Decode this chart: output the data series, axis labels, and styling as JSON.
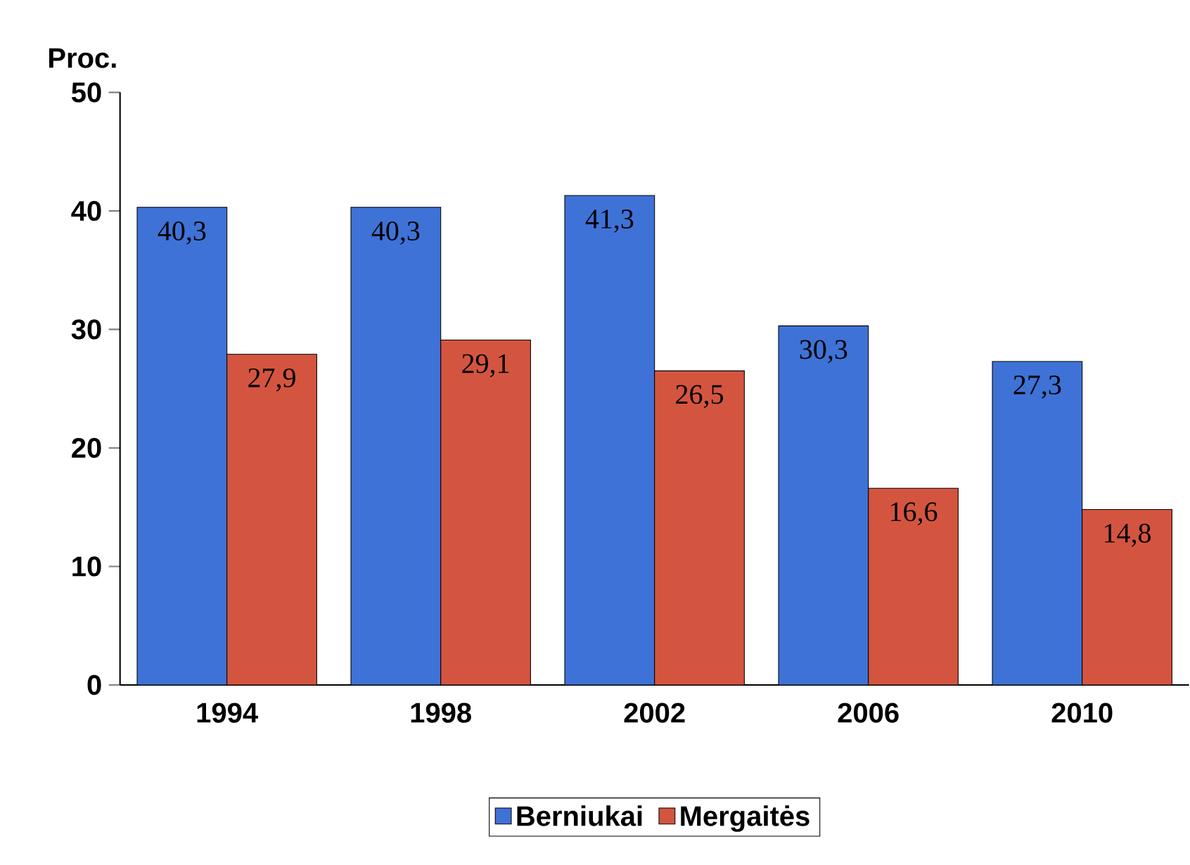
{
  "chart_data": {
    "type": "bar",
    "ylabel": "Proc.",
    "categories": [
      "1994",
      "1998",
      "2002",
      "2006",
      "2010"
    ],
    "series": [
      {
        "name": "Berniukai",
        "color": "#3f72d6",
        "values": [
          40.3,
          40.3,
          41.3,
          30.3,
          27.3
        ],
        "value_labels": [
          "40,3",
          "40,3",
          "41,3",
          "30,3",
          "27,3"
        ]
      },
      {
        "name": "Mergaitės",
        "color": "#d4553f",
        "values": [
          27.9,
          29.1,
          26.5,
          16.6,
          14.8
        ],
        "value_labels": [
          "27,9",
          "29,1",
          "26,5",
          "16,6",
          "14,8"
        ]
      }
    ],
    "ylim": [
      0,
      50
    ],
    "yticks": [
      0,
      10,
      20,
      30,
      40,
      50
    ],
    "grid": false,
    "legend": "bottom"
  }
}
